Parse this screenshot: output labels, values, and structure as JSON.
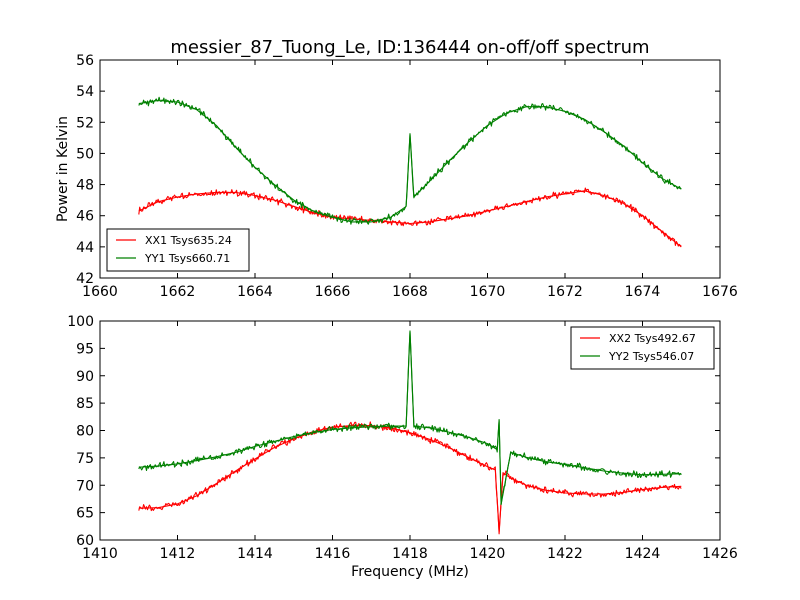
{
  "title": "messier_87_Tuong_Le, ID:136444 on-off/off spectrum",
  "chart_data": [
    {
      "type": "line",
      "ylabel": "Power in Kelvin",
      "xlabel": "",
      "xlim": [
        1660,
        1676
      ],
      "ylim": [
        42,
        56
      ],
      "xticks": [
        1660,
        1662,
        1664,
        1666,
        1668,
        1670,
        1672,
        1674,
        1676
      ],
      "yticks": [
        42,
        44,
        46,
        48,
        50,
        52,
        54,
        56
      ],
      "legend": "lower-left",
      "grid": false,
      "series": [
        {
          "name": "XX1 Tsys635.24",
          "color": "#ff0000",
          "x": [
            1661.0,
            1661.5,
            1662.0,
            1662.5,
            1663.0,
            1663.5,
            1664.0,
            1664.5,
            1665.0,
            1665.5,
            1666.0,
            1666.5,
            1667.0,
            1667.5,
            1668.0,
            1668.5,
            1669.0,
            1669.5,
            1670.0,
            1670.5,
            1671.0,
            1671.5,
            1672.0,
            1672.5,
            1673.0,
            1673.5,
            1674.0,
            1674.5,
            1675.0
          ],
          "values": [
            46.3,
            46.9,
            47.2,
            47.4,
            47.5,
            47.5,
            47.3,
            47.0,
            46.6,
            46.2,
            45.9,
            45.8,
            45.7,
            45.6,
            45.5,
            45.6,
            45.8,
            46.0,
            46.3,
            46.6,
            46.9,
            47.2,
            47.4,
            47.6,
            47.3,
            46.8,
            46.0,
            45.0,
            44.0
          ]
        },
        {
          "name": "YY1 Tsys660.71",
          "color": "#008000",
          "x": [
            1661.0,
            1661.5,
            1662.0,
            1662.5,
            1663.0,
            1663.5,
            1664.0,
            1664.5,
            1665.0,
            1665.5,
            1666.0,
            1666.5,
            1667.0,
            1667.5,
            1667.9,
            1668.0,
            1668.1,
            1668.5,
            1669.0,
            1669.5,
            1670.0,
            1670.5,
            1671.0,
            1671.5,
            1672.0,
            1672.5,
            1673.0,
            1673.5,
            1674.0,
            1674.5,
            1675.0
          ],
          "values": [
            53.2,
            53.4,
            53.3,
            52.8,
            51.8,
            50.4,
            49.1,
            48.0,
            47.0,
            46.3,
            45.9,
            45.6,
            45.6,
            45.9,
            46.6,
            51.2,
            47.2,
            48.2,
            49.5,
            50.7,
            51.8,
            52.6,
            53.0,
            53.0,
            52.7,
            52.2,
            51.4,
            50.5,
            49.4,
            48.4,
            47.7
          ]
        }
      ]
    },
    {
      "type": "line",
      "xlabel": "Frequency (MHz)",
      "ylabel": "",
      "xlim": [
        1410,
        1426
      ],
      "ylim": [
        60,
        100
      ],
      "xticks": [
        1410,
        1412,
        1414,
        1416,
        1418,
        1420,
        1422,
        1424,
        1426
      ],
      "yticks": [
        60,
        65,
        70,
        75,
        80,
        85,
        90,
        95,
        100
      ],
      "legend": "top-right",
      "grid": false,
      "series": [
        {
          "name": "XX2 Tsys492.67",
          "color": "#ff0000",
          "x": [
            1411.0,
            1411.5,
            1412.0,
            1412.5,
            1413.0,
            1413.5,
            1414.0,
            1414.5,
            1415.0,
            1415.5,
            1416.0,
            1416.5,
            1417.0,
            1417.5,
            1418.0,
            1418.5,
            1419.0,
            1419.5,
            1420.0,
            1420.2,
            1420.3,
            1420.4,
            1420.6,
            1421.0,
            1421.5,
            1422.0,
            1422.5,
            1423.0,
            1423.5,
            1424.0,
            1424.5,
            1425.0
          ],
          "values": [
            65.8,
            65.9,
            66.6,
            68.1,
            70.3,
            72.6,
            74.8,
            76.9,
            78.5,
            79.8,
            80.6,
            80.9,
            80.9,
            80.5,
            79.6,
            78.4,
            76.9,
            75.1,
            73.4,
            72.8,
            61.5,
            72.3,
            71.3,
            70.0,
            69.1,
            68.6,
            68.4,
            68.4,
            68.7,
            69.2,
            69.6,
            69.8
          ]
        },
        {
          "name": "YY2 Tsys546.07",
          "color": "#008000",
          "x": [
            1411.0,
            1411.5,
            1412.0,
            1412.5,
            1413.0,
            1413.5,
            1414.0,
            1414.5,
            1415.0,
            1415.5,
            1416.0,
            1416.5,
            1417.0,
            1417.5,
            1417.9,
            1418.0,
            1418.1,
            1418.5,
            1419.0,
            1419.5,
            1420.0,
            1420.25,
            1420.3,
            1420.35,
            1420.6,
            1421.0,
            1421.5,
            1422.0,
            1422.5,
            1423.0,
            1423.5,
            1424.0,
            1424.5,
            1425.0
          ],
          "values": [
            73.3,
            73.5,
            73.9,
            74.5,
            75.2,
            76.0,
            77.1,
            78.0,
            78.9,
            79.6,
            80.2,
            80.5,
            80.7,
            80.8,
            80.8,
            98.2,
            80.8,
            80.5,
            79.7,
            78.8,
            77.6,
            76.5,
            82.0,
            66.5,
            76.0,
            75.1,
            74.3,
            73.8,
            73.2,
            72.6,
            72.2,
            71.9,
            72.0,
            72.1
          ]
        }
      ]
    }
  ]
}
